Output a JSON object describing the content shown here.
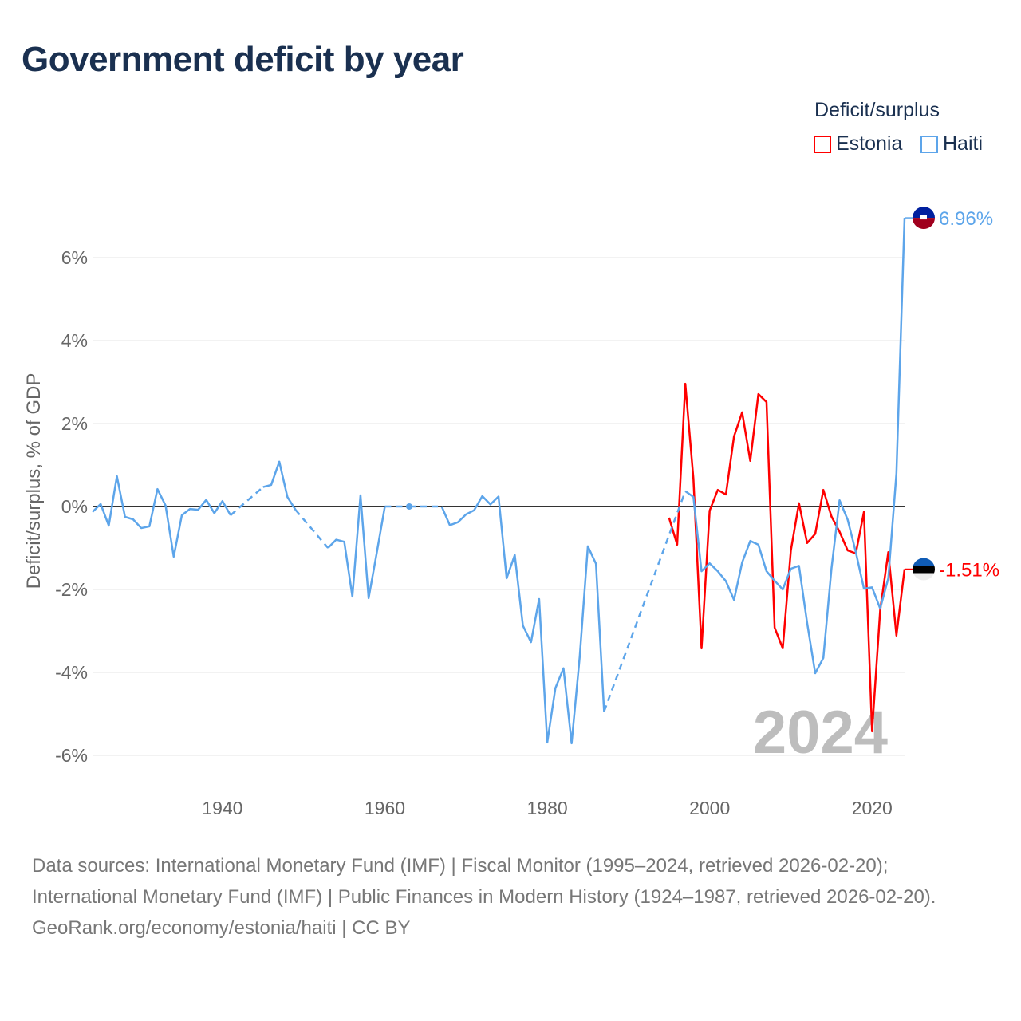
{
  "title": "Government deficit by year",
  "legend": {
    "title": "Deficit/surplus",
    "items": [
      {
        "label": "Estonia",
        "color": "#ff0000"
      },
      {
        "label": "Haiti",
        "color": "#5da5ea"
      }
    ]
  },
  "year_watermark": "2024",
  "footer": {
    "sources": "Data sources: International Monetary Fund (IMF) | Fiscal Monitor (1995–2024, retrieved 2026-02-20); International Monetary Fund (IMF) | Public Finances in Modern History (1924–1987, retrieved 2026-02-20).",
    "credit": "GeoRank.org/economy/estonia/haiti | CC BY"
  },
  "chart_data": {
    "type": "line",
    "title": "Government deficit by year",
    "xlabel": "",
    "ylabel": "Deficit/surplus, % of GDP",
    "xlim": [
      1924,
      2024
    ],
    "ylim": [
      -7,
      7.5
    ],
    "xticks": [
      1940,
      1960,
      1980,
      2000,
      2020
    ],
    "yticks": [
      -6,
      -4,
      -2,
      0,
      2,
      4,
      6
    ],
    "ytick_labels": [
      "-6%",
      "-4%",
      "-2%",
      "0%",
      "2%",
      "4%",
      "6%"
    ],
    "xtick_labels": [
      "1940",
      "1960",
      "1980",
      "2000",
      "2020"
    ],
    "grid": true,
    "legend_position": "top-right",
    "series": [
      {
        "name": "Estonia",
        "color": "#ff0000",
        "end_label": "-1.51%",
        "points": [
          [
            1995,
            -0.27
          ],
          [
            1996,
            -0.92
          ],
          [
            1997,
            2.96
          ],
          [
            1998,
            0.67
          ],
          [
            1999,
            -3.42
          ],
          [
            2000,
            -0.1
          ],
          [
            2001,
            0.4
          ],
          [
            2002,
            0.29
          ],
          [
            2003,
            1.69
          ],
          [
            2004,
            2.27
          ],
          [
            2005,
            1.1
          ],
          [
            2006,
            2.71
          ],
          [
            2007,
            2.52
          ],
          [
            2008,
            -2.92
          ],
          [
            2009,
            -3.42
          ],
          [
            2010,
            -1.06
          ],
          [
            2011,
            0.08
          ],
          [
            2012,
            -0.88
          ],
          [
            2013,
            -0.66
          ],
          [
            2014,
            0.4
          ],
          [
            2015,
            -0.24
          ],
          [
            2016,
            -0.61
          ],
          [
            2017,
            -1.06
          ],
          [
            2018,
            -1.13
          ],
          [
            2019,
            -0.13
          ],
          [
            2020,
            -5.42
          ],
          [
            2021,
            -2.5
          ],
          [
            2022,
            -1.1
          ],
          [
            2023,
            -3.11
          ],
          [
            2024,
            -1.51
          ]
        ]
      },
      {
        "name": "Haiti",
        "color": "#5da5ea",
        "end_label": "6.96%",
        "points": [
          [
            1924,
            -0.13
          ],
          [
            1925,
            0.06
          ],
          [
            1926,
            -0.46
          ],
          [
            1927,
            0.73
          ],
          [
            1928,
            -0.25
          ],
          [
            1929,
            -0.31
          ],
          [
            1930,
            -0.52
          ],
          [
            1931,
            -0.48
          ],
          [
            1932,
            0.42
          ],
          [
            1933,
            0.02
          ],
          [
            1934,
            -1.21
          ],
          [
            1935,
            -0.21
          ],
          [
            1936,
            -0.06
          ],
          [
            1937,
            -0.08
          ],
          [
            1938,
            0.16
          ],
          [
            1939,
            -0.16
          ],
          [
            1940,
            0.13
          ],
          [
            1941,
            -0.21
          ],
          [
            1945,
            0.47
          ],
          [
            1946,
            0.52
          ],
          [
            1947,
            1.08
          ],
          [
            1948,
            0.23
          ],
          [
            1949,
            -0.08
          ],
          [
            1953,
            -1.0
          ],
          [
            1954,
            -0.8
          ],
          [
            1955,
            -0.85
          ],
          [
            1956,
            -2.17
          ],
          [
            1957,
            0.27
          ],
          [
            1958,
            -2.21
          ],
          [
            1959,
            -1.12
          ],
          [
            1960,
            0.0
          ],
          [
            1963,
            0.0
          ],
          [
            1967,
            0.0
          ],
          [
            1968,
            -0.45
          ],
          [
            1969,
            -0.38
          ],
          [
            1970,
            -0.19
          ],
          [
            1971,
            -0.09
          ],
          [
            1972,
            0.25
          ],
          [
            1973,
            0.05
          ],
          [
            1974,
            0.24
          ],
          [
            1975,
            -1.73
          ],
          [
            1976,
            -1.17
          ],
          [
            1977,
            -2.87
          ],
          [
            1978,
            -3.27
          ],
          [
            1979,
            -2.23
          ],
          [
            1980,
            -5.69
          ],
          [
            1981,
            -4.38
          ],
          [
            1982,
            -3.9
          ],
          [
            1983,
            -5.71
          ],
          [
            1984,
            -3.62
          ],
          [
            1985,
            -0.96
          ],
          [
            1986,
            -1.38
          ],
          [
            1987,
            -4.94
          ],
          [
            1997,
            0.37
          ],
          [
            1998,
            0.23
          ],
          [
            1999,
            -1.56
          ],
          [
            2000,
            -1.37
          ],
          [
            2001,
            -1.56
          ],
          [
            2002,
            -1.8
          ],
          [
            2003,
            -2.25
          ],
          [
            2004,
            -1.35
          ],
          [
            2005,
            -0.83
          ],
          [
            2006,
            -0.92
          ],
          [
            2007,
            -1.56
          ],
          [
            2008,
            -1.79
          ],
          [
            2009,
            -2.0
          ],
          [
            2010,
            -1.5
          ],
          [
            2011,
            -1.43
          ],
          [
            2012,
            -2.8
          ],
          [
            2013,
            -4.02
          ],
          [
            2014,
            -3.65
          ],
          [
            2015,
            -1.5
          ],
          [
            2016,
            0.15
          ],
          [
            2017,
            -0.32
          ],
          [
            2018,
            -1.1
          ],
          [
            2019,
            -1.98
          ],
          [
            2020,
            -1.95
          ],
          [
            2021,
            -2.46
          ],
          [
            2022,
            -1.73
          ],
          [
            2023,
            0.8
          ],
          [
            2024,
            6.96
          ]
        ]
      }
    ]
  }
}
